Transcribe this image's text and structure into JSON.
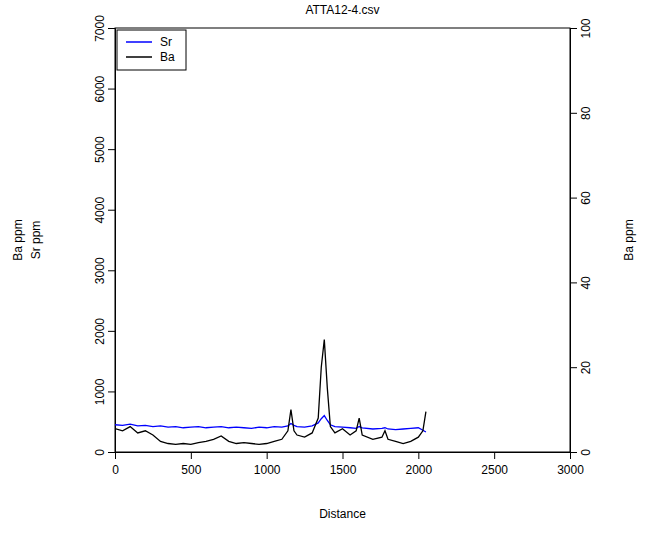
{
  "chart_data": {
    "type": "line",
    "title": "ATTA12-4.csv",
    "xlabel": "Distance",
    "ylabel": [
      "Ba ppm",
      "Sr ppm"
    ],
    "y2label": "Ba ppm",
    "x": [
      0,
      50,
      100,
      150,
      200,
      250,
      300,
      350,
      400,
      450,
      500,
      550,
      600,
      650,
      700,
      750,
      800,
      850,
      900,
      950,
      1000,
      1050,
      1100,
      1140,
      1160,
      1180,
      1200,
      1250,
      1300,
      1340,
      1360,
      1380,
      1400,
      1420,
      1450,
      1500,
      1550,
      1590,
      1610,
      1630,
      1700,
      1760,
      1780,
      1800,
      1850,
      1900,
      1950,
      2000,
      2030,
      2050
    ],
    "series": [
      {
        "name": "Sr",
        "color": "#0000ff",
        "values": [
          450,
          440,
          460,
          430,
          440,
          420,
          430,
          410,
          420,
          400,
          410,
          420,
          400,
          410,
          420,
          400,
          410,
          400,
          390,
          410,
          400,
          420,
          410,
          430,
          470,
          440,
          420,
          410,
          430,
          480,
          550,
          600,
          520,
          450,
          420,
          410,
          400,
          390,
          420,
          400,
          380,
          390,
          400,
          380,
          370,
          380,
          390,
          400,
          360,
          330
        ]
      },
      {
        "name": "Ba",
        "color": "#000000",
        "axis": "y2",
        "values": [
          5.5,
          5.0,
          6.0,
          4.5,
          5.0,
          4.0,
          2.5,
          2.0,
          1.8,
          2.0,
          1.8,
          2.2,
          2.5,
          3.0,
          3.8,
          2.5,
          2.0,
          2.2,
          2.0,
          1.8,
          2.0,
          2.5,
          3.0,
          5.0,
          10.0,
          5.0,
          4.0,
          3.5,
          4.5,
          8.0,
          20.0,
          26.5,
          15.0,
          6.0,
          4.5,
          5.5,
          4.0,
          5.0,
          8.0,
          4.0,
          3.0,
          3.5,
          5.0,
          3.0,
          2.5,
          2.0,
          2.5,
          3.5,
          5.0,
          9.5
        ]
      }
    ],
    "xlim": [
      0,
      3000
    ],
    "xticks": [
      0,
      500,
      1000,
      1500,
      2000,
      2500,
      3000
    ],
    "ylim": [
      0,
      7000
    ],
    "yticks": [
      0,
      1000,
      2000,
      3000,
      4000,
      5000,
      6000,
      7000
    ],
    "y2lim": [
      0,
      100
    ],
    "y2ticks": [
      0,
      20,
      40,
      60,
      80,
      100
    ],
    "legend": "top-left",
    "grid": false
  }
}
